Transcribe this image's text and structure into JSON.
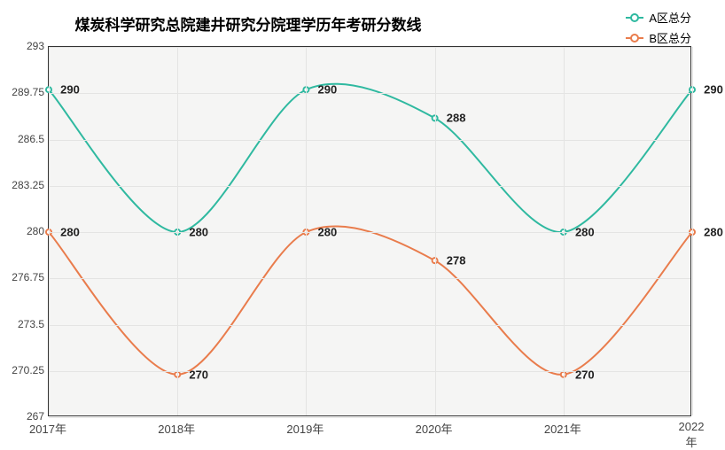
{
  "chart": {
    "type": "line",
    "title": "煤炭科学研究总院建井研究分院理学历年考研分数线",
    "title_fontsize": 17,
    "title_weight": "bold",
    "background_color": "#ffffff",
    "plot_background": "#f5f5f4",
    "grid_color": "#e4e4e3",
    "axis_color": "#333333",
    "label_fontsize": 13,
    "data_label_fontsize": 13,
    "ylim": [
      267,
      293
    ],
    "yticks": [
      267,
      270.25,
      273.5,
      276.75,
      280,
      283.25,
      286.5,
      289.75,
      293
    ],
    "xticks": [
      "2017年",
      "2018年",
      "2019年",
      "2020年",
      "2021年",
      "2022年"
    ],
    "legend": {
      "position": "top-right",
      "items": [
        {
          "label": "A区总分",
          "color": "#2fb9a0"
        },
        {
          "label": "B区总分",
          "color": "#e97c4c"
        }
      ]
    },
    "series": [
      {
        "name": "A区总分",
        "color": "#2fb9a0",
        "line_width": 2,
        "marker": "hollow-circle",
        "marker_size": 6,
        "smooth": true,
        "values": [
          290,
          280,
          290,
          288,
          280,
          290
        ]
      },
      {
        "name": "B区总分",
        "color": "#e97c4c",
        "line_width": 2,
        "marker": "hollow-circle",
        "marker_size": 6,
        "smooth": true,
        "values": [
          280,
          270,
          280,
          278,
          270,
          280
        ]
      }
    ]
  }
}
